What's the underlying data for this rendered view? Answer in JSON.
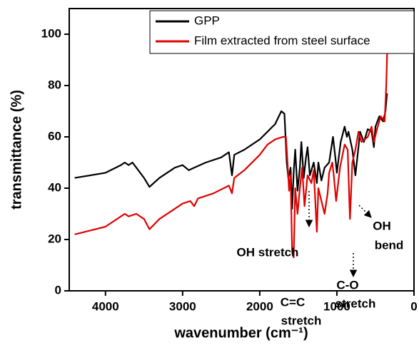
{
  "chart_data": {
    "type": "line",
    "xlabel": "wavenumber (cm⁻¹)",
    "ylabel": "transmittance (%)",
    "xlim": [
      4470,
      0
    ],
    "xticks": [
      4000,
      3000,
      2000,
      1000,
      0
    ],
    "ylim": [
      0,
      110
    ],
    "yticks": [
      0,
      20,
      40,
      60,
      80,
      100
    ],
    "legend": "upper right",
    "series": [
      {
        "name": "GPP",
        "color": "#000000",
        "x": [
          4400,
          4000,
          3800,
          3750,
          3700,
          3650,
          3600,
          3500,
          3430,
          3300,
          3100,
          3000,
          2920,
          2850,
          2700,
          2500,
          2400,
          2360,
          2330,
          2200,
          2000,
          1900,
          1800,
          1720,
          1680,
          1650,
          1630,
          1600,
          1580,
          1560,
          1540,
          1510,
          1480,
          1460,
          1430,
          1400,
          1380,
          1350,
          1300,
          1260,
          1240,
          1200,
          1160,
          1100,
          1050,
          1020,
          1000,
          950,
          900,
          870,
          850,
          800,
          760,
          720,
          700,
          650,
          600,
          550,
          520,
          500,
          450,
          400,
          370,
          350
        ],
        "values": [
          44,
          46,
          49,
          50,
          49,
          50,
          48,
          44,
          40.5,
          44,
          48,
          49,
          47,
          48,
          50,
          52,
          54,
          45,
          53,
          55,
          59,
          62,
          65,
          70,
          69,
          50,
          44,
          48,
          32,
          46,
          55,
          39,
          48,
          58,
          44,
          52,
          56,
          45,
          50,
          42,
          50,
          43,
          48,
          50,
          60,
          52,
          46,
          58,
          64,
          60,
          62,
          55,
          45,
          56,
          62,
          58,
          63,
          62,
          56,
          64,
          68,
          66,
          70,
          77
        ]
      },
      {
        "name": "Film extracted from steel surface",
        "color": "#e00000",
        "x": [
          4400,
          4000,
          3800,
          3750,
          3700,
          3600,
          3500,
          3430,
          3300,
          3100,
          3000,
          2900,
          2850,
          2800,
          2600,
          2400,
          2360,
          2330,
          2200,
          2000,
          1900,
          1800,
          1700,
          1660,
          1640,
          1620,
          1600,
          1580,
          1560,
          1540,
          1510,
          1480,
          1450,
          1420,
          1380,
          1330,
          1300,
          1260,
          1240,
          1200,
          1160,
          1120,
          1100,
          1060,
          1040,
          1010,
          960,
          900,
          860,
          830,
          800,
          760,
          720,
          680,
          600,
          550,
          520,
          480,
          430,
          380,
          360,
          345
        ],
        "values": [
          22,
          25,
          29,
          30,
          29,
          30,
          28,
          24,
          28,
          32,
          34,
          35,
          33,
          36,
          38,
          41,
          38,
          44,
          47,
          53,
          57,
          59,
          60,
          60,
          50,
          39,
          45,
          15,
          13,
          40,
          30,
          40,
          48,
          33,
          45,
          42,
          47,
          23,
          40,
          35,
          30,
          38,
          46,
          50,
          45,
          35,
          48,
          57,
          55,
          28,
          50,
          55,
          62,
          58,
          60,
          64,
          58,
          63,
          68,
          66,
          80,
          96
        ]
      }
    ],
    "annotations": [
      [
        "OH stretch"
      ],
      [
        "C=C",
        "stretch"
      ],
      [
        "C-O",
        "stretch"
      ],
      [
        "OH",
        "bend"
      ]
    ]
  }
}
